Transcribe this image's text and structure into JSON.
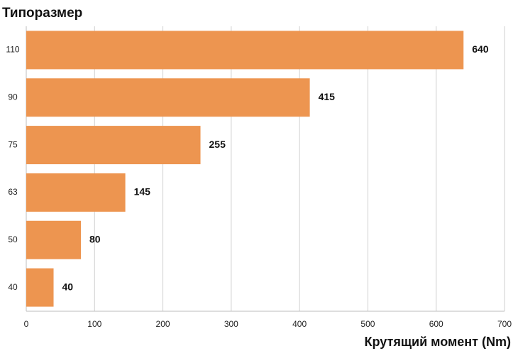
{
  "chart_data": {
    "type": "bar",
    "orientation": "horizontal",
    "title": "Типоразмер",
    "x_label": "Крутящий момент (Nm)",
    "categories": [
      "110",
      "90",
      "75",
      "63",
      "50",
      "40"
    ],
    "values": [
      640,
      415,
      255,
      145,
      80,
      40
    ],
    "color": "#ed9550",
    "xlim": [
      0,
      700
    ],
    "xticks": [
      0,
      100,
      200,
      300,
      400,
      500,
      600,
      700
    ],
    "grid": true
  }
}
